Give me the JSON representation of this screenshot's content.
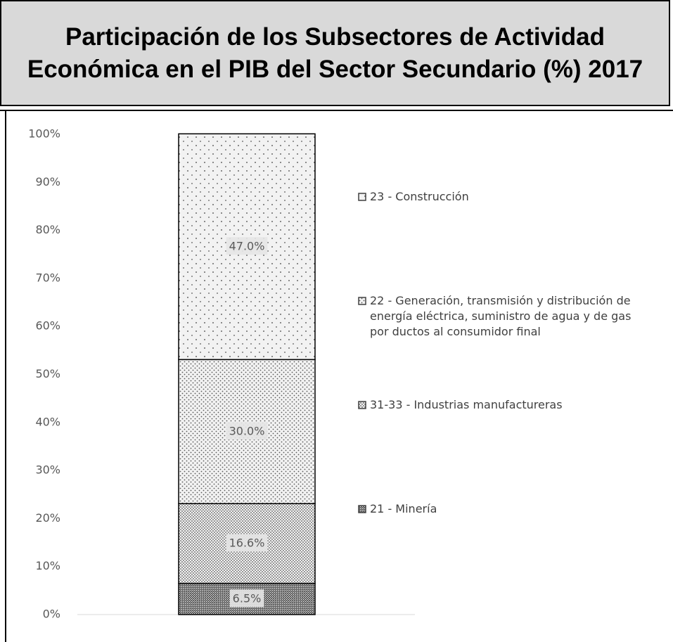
{
  "chart_data": {
    "type": "stacked_bar",
    "title": "Participación de los Subsectores de Actividad Económica en el PIB del Sector Secundario (%) 2017",
    "categories": [
      null
    ],
    "series": [
      {
        "name": "21 - Minería",
        "color": "#7f7f7f",
        "values": [
          6.5
        ],
        "value_labels": [
          "6.5%"
        ]
      },
      {
        "name": "31-33 - Industrias manufactureras",
        "color": "#a6a6a6",
        "values": [
          16.6
        ],
        "value_labels": [
          "16.6%"
        ]
      },
      {
        "name": "22 - Generación, transmisión y distribución de energía eléctrica, suministro de agua y de gas por ductos al consumidor final",
        "color": "#bfbfbf",
        "values": [
          30.0
        ],
        "value_labels": [
          "30.0%"
        ]
      },
      {
        "name": "23 - Construcción",
        "color": "#d9d9d9",
        "values": [
          47.0
        ],
        "value_labels": [
          "47.0%"
        ]
      }
    ],
    "ylim": [
      0,
      100
    ],
    "yticks": [
      {
        "value": 0,
        "label": "0%"
      },
      {
        "value": 10,
        "label": "10%"
      },
      {
        "value": 20,
        "label": "20%"
      },
      {
        "value": 30,
        "label": "30%"
      },
      {
        "value": 40,
        "label": "40%"
      },
      {
        "value": 50,
        "label": "50%"
      },
      {
        "value": 60,
        "label": "60%"
      },
      {
        "value": 70,
        "label": "70%"
      },
      {
        "value": 80,
        "label": "80%"
      },
      {
        "value": 90,
        "label": "90%"
      },
      {
        "value": 100,
        "label": "100%"
      }
    ],
    "legend": "right"
  }
}
